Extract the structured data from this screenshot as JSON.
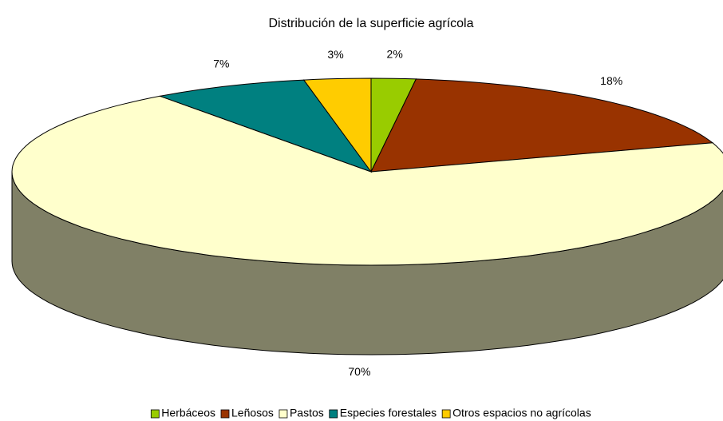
{
  "chart_data": {
    "type": "pie3d",
    "title": "Distribución de la superficie agrícola",
    "categories": [
      "Herbáceos",
      "Leñosos",
      "Pastos",
      "Especies forestales",
      "Otros espacios no agrícolas"
    ],
    "values": [
      2,
      18,
      70,
      7,
      3
    ],
    "value_labels": [
      "2%",
      "18%",
      "70%",
      "7%",
      "3%"
    ],
    "colors": [
      "#99cc00",
      "#993300",
      "#ffffcc",
      "#008080",
      "#ffcc00"
    ],
    "legend": "bottom"
  }
}
